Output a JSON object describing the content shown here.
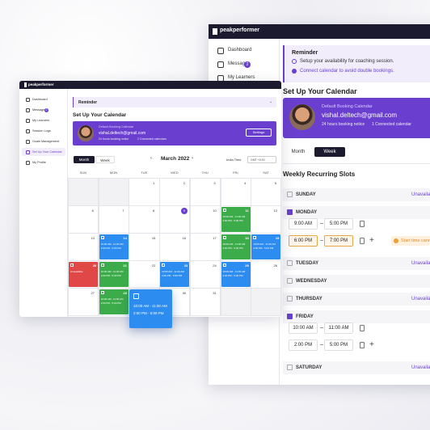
{
  "back": {
    "logo": "peakperformer",
    "nav": [
      "Dashboard",
      "Messages",
      "My Learners"
    ],
    "badge": "2",
    "reminder": {
      "title": "Reminder",
      "items": [
        "Setup your availability for coaching session.",
        "Connect calendar to avoid double bookings."
      ]
    },
    "heading": "Set Up Your Calendar",
    "card": {
      "label": "Default Booking Calendar",
      "email": "vishal.deltech@gmail.com",
      "notice": "24 hours booking notice",
      "connected": "1 Connected calendar"
    },
    "toggle": [
      "Month",
      "Week"
    ],
    "slots_title": "Weekly Recurring Slots",
    "days": [
      {
        "name": "SUNDAY",
        "status": "Unavailable"
      },
      {
        "name": "MONDAY",
        "checked": true,
        "slots": [
          [
            "9:00 AM",
            "5:00 PM"
          ],
          [
            "6:00 PM",
            "7:00 PM"
          ]
        ],
        "warning": "Start time cannot"
      },
      {
        "name": "TUESDAY",
        "status": "Unavailable"
      },
      {
        "name": "WEDNESDAY"
      },
      {
        "name": "THURSDAY",
        "status": "Unavailable"
      },
      {
        "name": "FRIDAY",
        "checked": true,
        "slots": [
          [
            "10:00 AM",
            "11:00 AM"
          ],
          [
            "2:00 PM",
            "5:00 PM"
          ]
        ]
      },
      {
        "name": "SATURDAY",
        "status": "Unavailable"
      }
    ]
  },
  "front": {
    "logo": "peakperformer",
    "nav": [
      "Dashboard",
      "Messages",
      "My Learners",
      "Session Logs",
      "Goals Management",
      "Set Up Your Calendar",
      "My Profile"
    ],
    "badge": "2",
    "active": 5,
    "reminder": "Reminder",
    "heading": "Set Up Your Calendar",
    "card": {
      "label": "Default Booking Calendar",
      "email": "vishal.deltech@gmail.com",
      "notice": "24 hours booking notice",
      "connected": "2 Connected calendars",
      "button": "Settings"
    },
    "toggle": [
      "Month",
      "Week"
    ],
    "month": "March 2022",
    "tz": "India Time",
    "tz_offset": "GMT +5:30",
    "weekdays": [
      "SUN",
      "MON",
      "TUE",
      "WED",
      "THU",
      "FRI",
      "SAT"
    ],
    "weeks": [
      [
        null,
        null,
        1,
        2,
        3,
        4,
        5
      ],
      [
        6,
        7,
        8,
        9,
        10,
        11,
        12
      ],
      [
        13,
        14,
        15,
        16,
        17,
        18,
        19
      ],
      [
        20,
        21,
        22,
        23,
        24,
        25,
        26
      ],
      [
        27,
        28,
        29,
        30,
        31,
        null,
        null
      ]
    ],
    "today": 9,
    "colors": {
      "green": "#3cab4a",
      "blue": "#2c8cf0",
      "red": "#e04848"
    },
    "events": [
      {
        "week": 1,
        "day": 5,
        "color": "green",
        "lines": [
          "10:00 AM - 11:00 AM",
          "2:00 PM - 5:00 PM"
        ]
      },
      {
        "week": 2,
        "day": 1,
        "color": "blue",
        "lines": [
          "10:00 AM - 11:00 AM",
          "2:00 PM - 5:00 PM"
        ]
      },
      {
        "week": 2,
        "day": 5,
        "color": "green",
        "lines": [
          "10:00 AM - 11:00 AM",
          "2:00 PM - 5:00 PM"
        ]
      },
      {
        "week": 2,
        "day": 6,
        "color": "blue",
        "lines": [
          "10:00 AM - 11:00 AM",
          "2:00 PM - 5:00 PM"
        ]
      },
      {
        "week": 3,
        "day": 0,
        "color": "red",
        "lines": [
          "Unavailable"
        ]
      },
      {
        "week": 3,
        "day": 1,
        "color": "green",
        "lines": [
          "10:00 AM - 11:00 AM",
          "2:00 PM - 5:00 PM"
        ]
      },
      {
        "week": 3,
        "day": 3,
        "color": "blue",
        "lines": [
          "10:00 AM - 11:00 AM",
          "2:00 PM - 5:00 PM"
        ]
      },
      {
        "week": 3,
        "day": 5,
        "color": "blue",
        "lines": [
          "10:00 AM - 11:00 AM",
          "2:00 PM - 5:00 PM"
        ]
      },
      {
        "week": 4,
        "day": 1,
        "color": "green",
        "lines": [
          "10:00 AM - 11:00 AM",
          "2:00 PM - 5:00 PM"
        ]
      }
    ],
    "popup": [
      "10:00 AM - 11:00 AM",
      "2:00 PM - 5:00 PM"
    ]
  }
}
